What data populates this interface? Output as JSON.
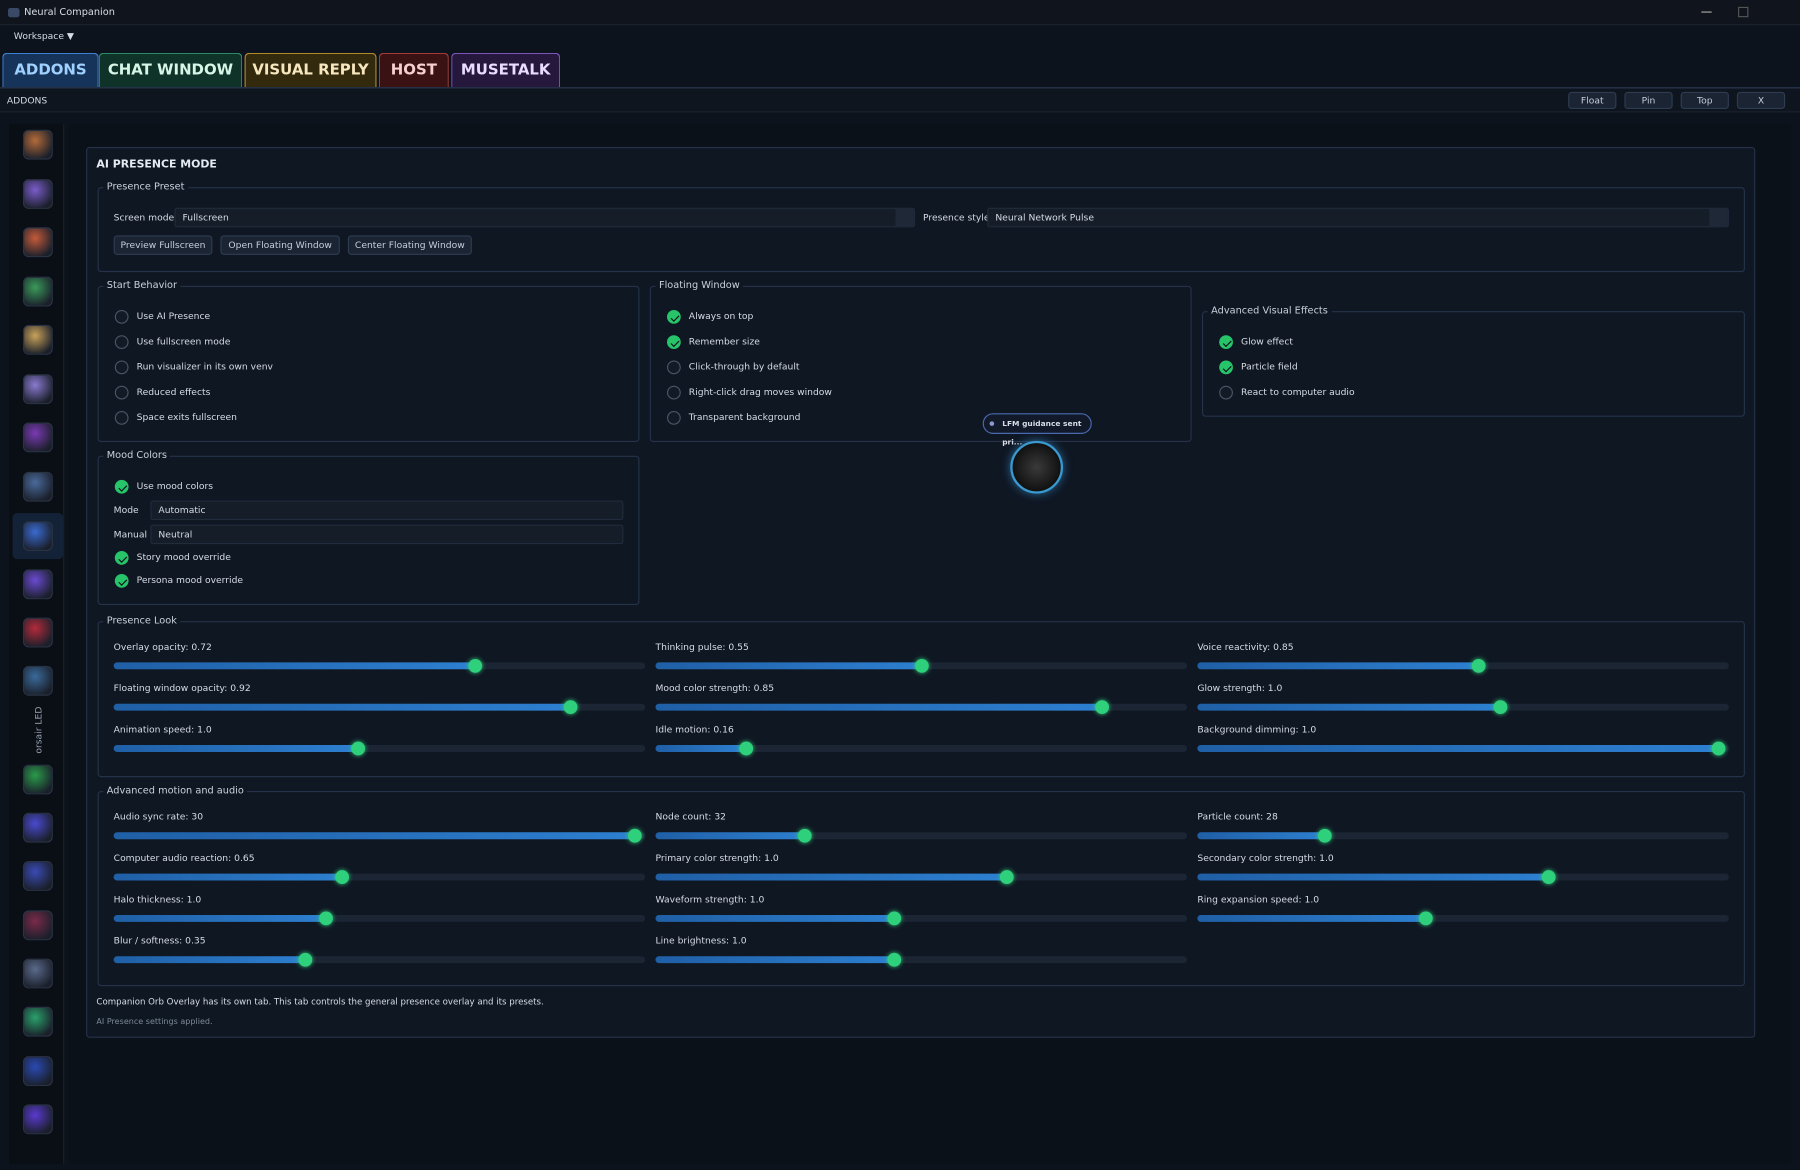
{
  "window": {
    "title": "Neural Companion",
    "menu": "Workspace ▼"
  },
  "tabs": [
    "ADDONS",
    "CHAT WINDOW",
    "VISUAL REPLY",
    "HOST",
    "MUSETALK"
  ],
  "panel": {
    "title": "ADDONS",
    "buttons": [
      "Float",
      "Pin",
      "Top",
      "X"
    ]
  },
  "sidebar": {
    "label": "orsair LED"
  },
  "main": {
    "title": "AI PRESENCE MODE",
    "presence_preset": {
      "title": "Presence Preset",
      "screen_mode_label": "Screen mode",
      "screen_mode": "Fullscreen",
      "presence_style_label": "Presence style",
      "presence_style": "Neural Network Pulse",
      "buttons": [
        "Preview Fullscreen",
        "Open Floating Window",
        "Center Floating Window"
      ]
    },
    "start_behavior": {
      "title": "Start Behavior",
      "options": [
        {
          "label": "Use AI Presence",
          "checked": false
        },
        {
          "label": "Use fullscreen mode",
          "checked": false
        },
        {
          "label": "Run visualizer in its own venv",
          "checked": false
        },
        {
          "label": "Reduced effects",
          "checked": false
        },
        {
          "label": "Space exits fullscreen",
          "checked": false
        }
      ]
    },
    "floating_window": {
      "title": "Floating Window",
      "options": [
        {
          "label": "Always on top",
          "checked": true
        },
        {
          "label": "Remember size",
          "checked": true
        },
        {
          "label": "Click-through by default",
          "checked": false
        },
        {
          "label": "Right-click drag moves window",
          "checked": false
        },
        {
          "label": "Transparent background",
          "checked": false
        }
      ],
      "badge": "LFM guidance sent pri..."
    },
    "advanced_visual_effects": {
      "title": "Advanced Visual Effects",
      "options": [
        {
          "label": "Glow effect",
          "checked": true
        },
        {
          "label": "Particle field",
          "checked": true
        },
        {
          "label": "React to computer audio",
          "checked": false
        }
      ]
    },
    "mood_colors": {
      "title": "Mood Colors",
      "use_mood_colors": {
        "label": "Use mood colors",
        "checked": true
      },
      "mode_label": "Mode",
      "mode": "Automatic",
      "manual_label": "Manual",
      "manual": "Neutral",
      "options": [
        {
          "label": "Story mood override",
          "checked": true
        },
        {
          "label": "Persona mood override",
          "checked": true
        }
      ]
    },
    "presence_look": {
      "title": "Presence Look",
      "sliders": [
        "Overlay opacity: 0.72",
        "Thinking pulse: 0.55",
        "Voice reactivity: 0.85",
        "Floating window opacity: 0.92",
        "Mood color strength: 0.85",
        "Glow strength: 1.0",
        "Animation speed: 1.0",
        "Idle motion: 0.16",
        "Background dimming: 1.0"
      ]
    },
    "advanced_motion": {
      "title": "Advanced motion and audio",
      "sliders": [
        "Audio sync rate: 30",
        "Node count: 32",
        "Particle count: 28",
        "Computer audio reaction: 0.65",
        "Primary color strength: 1.0",
        "Secondary color strength: 1.0",
        "Halo thickness: 1.0",
        "Waveform strength: 1.0",
        "Ring expansion speed: 1.0",
        "Blur / softness: 0.35",
        "Line brightness: 1.0"
      ]
    },
    "note": "Companion Orb Overlay has its own tab. This tab controls the general presence overlay and its presets.",
    "status": "AI Presence settings applied."
  }
}
